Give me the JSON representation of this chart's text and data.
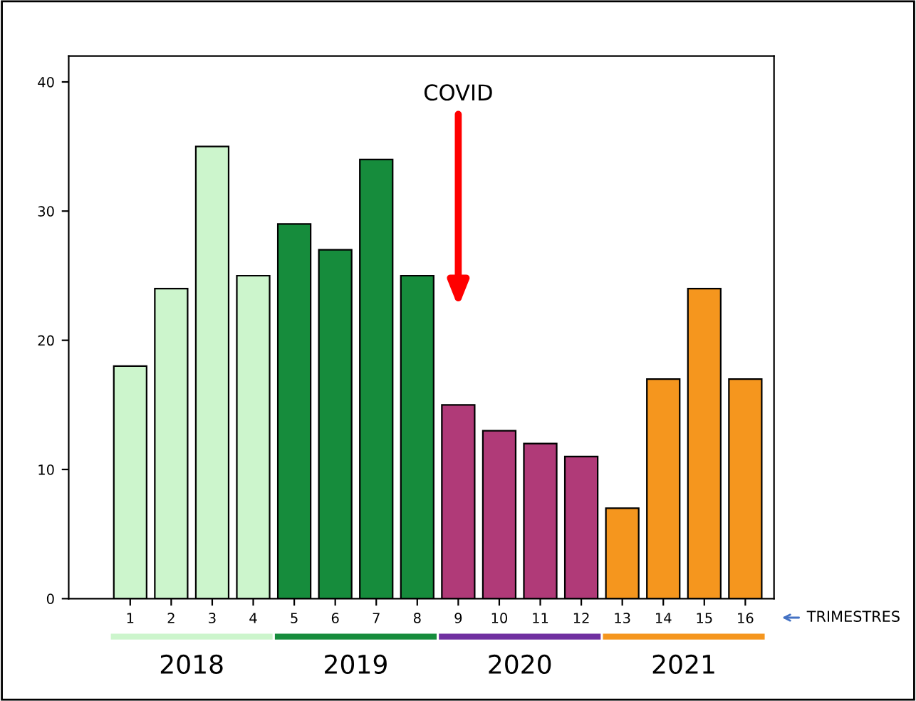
{
  "chart_data": {
    "type": "bar",
    "categories": [
      "1",
      "2",
      "3",
      "4",
      "5",
      "6",
      "7",
      "8",
      "9",
      "10",
      "11",
      "12",
      "13",
      "14",
      "15",
      "16"
    ],
    "values": [
      18,
      24,
      35,
      25,
      29,
      27,
      34,
      25,
      15,
      13,
      12,
      11,
      7,
      17,
      24,
      17
    ],
    "colors": [
      "#ccf5cc",
      "#ccf5cc",
      "#ccf5cc",
      "#ccf5cc",
      "#168c3c",
      "#168c3c",
      "#168c3c",
      "#168c3c",
      "#b03a78",
      "#b03a78",
      "#b03a78",
      "#b03a78",
      "#f5961e",
      "#f5961e",
      "#f5961e",
      "#f5961e"
    ],
    "ylim": [
      0,
      42
    ],
    "yticks": [
      0,
      10,
      20,
      30,
      40
    ],
    "grid": false,
    "legend": false,
    "annotations": [
      "COVID",
      "2018",
      "2019",
      "2020",
      "2021",
      "TRIMESTRES"
    ]
  }
}
